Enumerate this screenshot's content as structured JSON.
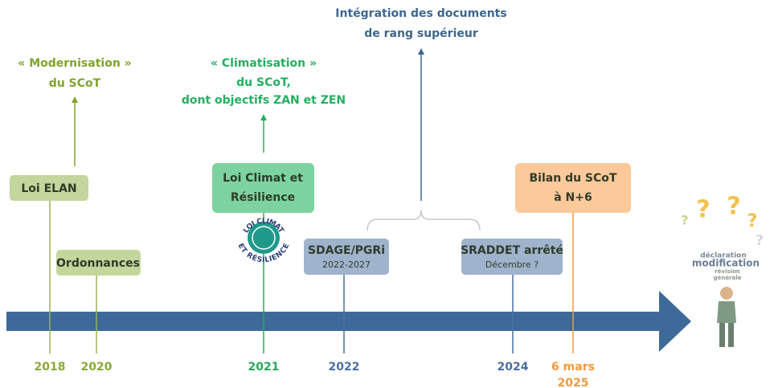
{
  "annotations": {
    "integration": [
      "Intégration des documents",
      "de rang supérieur"
    ],
    "modernisation": [
      "« Modernisation »",
      "du SCoT"
    ],
    "climatisation": [
      "« Climatisation »",
      "du SCoT,",
      "dont objectifs ZAN et ZEN"
    ]
  },
  "events": {
    "loi_elan": [
      "Loi ELAN"
    ],
    "ordonnances": [
      "Ordonnances"
    ],
    "loi_climat": [
      "Loi Climat et",
      "Résilience"
    ],
    "sdage": [
      "SDAGE/PGRi",
      "2022-2027"
    ],
    "sraddet": [
      "SRADDET arrêté",
      "Décembre ?"
    ],
    "bilan": [
      "Bilan du SCoT",
      "à N+6"
    ]
  },
  "years": {
    "y2018": "2018",
    "y2020": "2020",
    "y2021": "2021",
    "y2022": "2022",
    "y2024": "2024",
    "y2025": [
      "6 mars",
      "2025"
    ]
  },
  "logo": [
    "LOI CLIMAT",
    "ET RÉSILIENCE"
  ],
  "word_cloud": [
    "déclaration",
    "modification",
    "révision",
    "générale"
  ]
}
